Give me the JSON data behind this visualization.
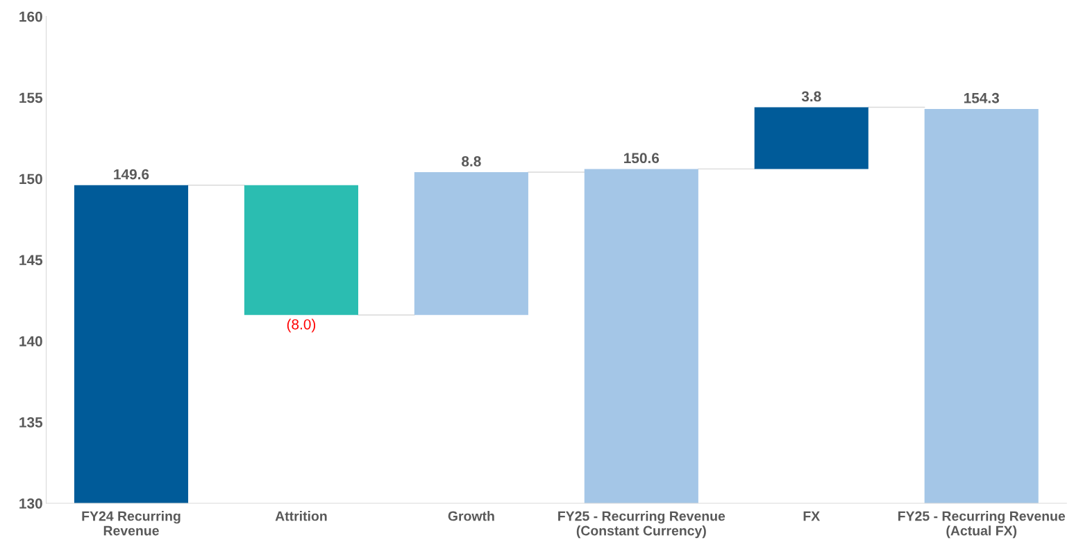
{
  "chart_data": {
    "type": "bar",
    "categories": [
      "FY24 Recurring\nRevenue",
      "Attrition",
      "Growth",
      "FY25 - Recurring Revenue\n(Constant Currency)",
      "FX",
      "FY25 - Recurring Revenue\n(Actual FX)"
    ],
    "values": [
      19.6,
      -8.0,
      8.8,
      20.6,
      3.8,
      24.3
    ],
    "base": [
      130,
      149.6,
      141.6,
      130,
      150.6,
      130
    ],
    "colors": [
      "#005b99",
      "#2bbdb1",
      "#a4c6e7",
      "#a4c6e7",
      "#005b99",
      "#a4c6e7"
    ],
    "value_labels": [
      "149.6",
      "(8.0)",
      "8.8",
      "150.6",
      "3.8",
      "154.3"
    ],
    "ylim": [
      130,
      160
    ],
    "yticks": [
      130,
      135,
      140,
      145,
      150,
      155,
      160
    ],
    "grid": false,
    "legend": false
  }
}
